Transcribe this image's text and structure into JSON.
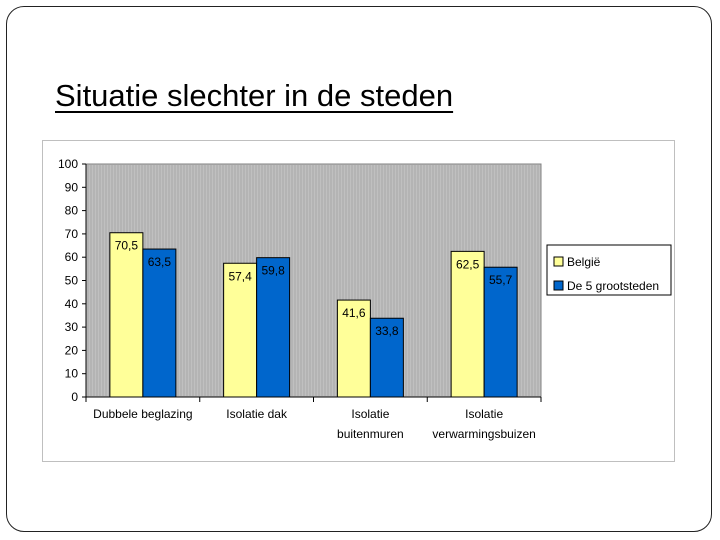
{
  "slide": {
    "title": "Situatie slechter in de steden"
  },
  "colors": {
    "belgie": "#ffff99",
    "grootsteden": "#0066cc",
    "plot_bg": "#c0c0c0",
    "data_label_box": "#ffffff"
  },
  "chart_data": {
    "type": "bar",
    "title": "",
    "xlabel": "",
    "ylabel": "",
    "ylim": [
      0,
      100
    ],
    "yticks": [
      "0",
      "10",
      "20",
      "30",
      "40",
      "50",
      "60",
      "70",
      "80",
      "90",
      "100"
    ],
    "categories": [
      [
        "Dubbele beglazing"
      ],
      [
        "Isolatie dak"
      ],
      [
        "Isolatie",
        "buitenmuren"
      ],
      [
        "Isolatie",
        "verwarmingsbuizen"
      ]
    ],
    "series": [
      {
        "name": "België",
        "values": [
          70.5,
          57.4,
          41.6,
          62.5
        ],
        "labels": [
          "70,5",
          "57,4",
          "41,6",
          "62,5"
        ]
      },
      {
        "name": "De 5 grootsteden",
        "values": [
          63.5,
          59.8,
          33.8,
          55.7
        ],
        "labels": [
          "63,5",
          "59,8",
          "33,8",
          "55,7"
        ]
      }
    ],
    "legend_position": "right"
  }
}
